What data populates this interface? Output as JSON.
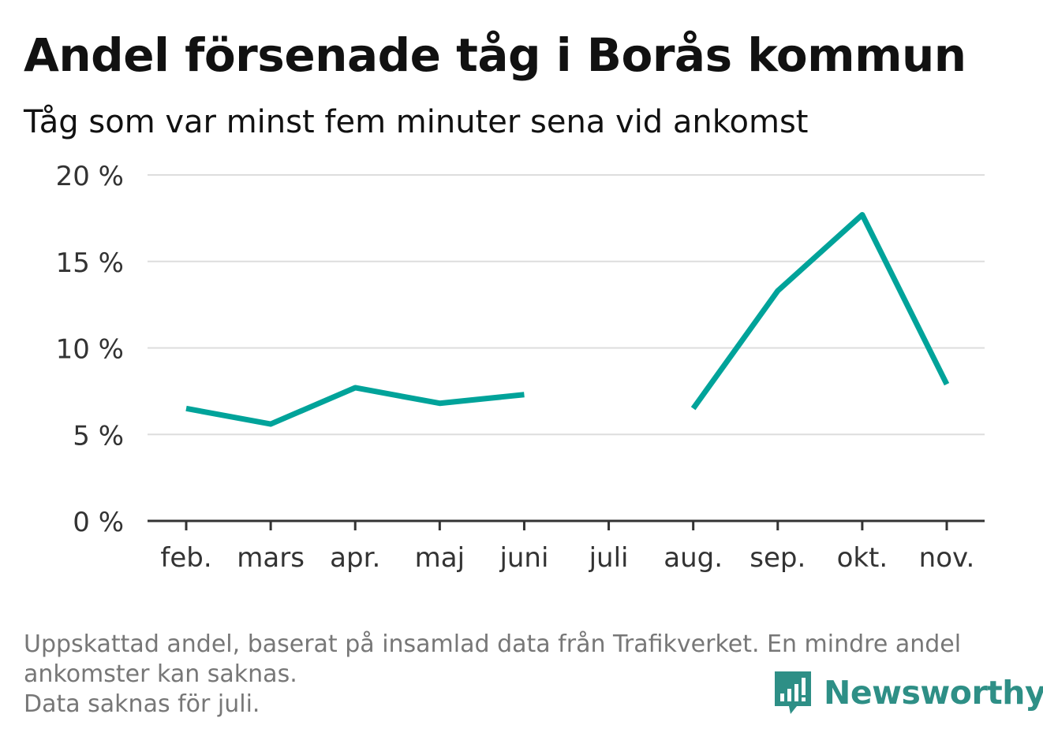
{
  "title": "Andel försenade tåg i Borås kommun",
  "subtitle": "Tåg som var minst fem minuter sena vid ankomst",
  "footnote": {
    "line1": "Uppskattad andel, baserat på insamlad data från Trafikverket. En mindre andel",
    "line2": "ankomster kan saknas.",
    "line3": "Data saknas för juli."
  },
  "brand": {
    "name": "Newsworthy",
    "icon": "newsworthy-logo-icon",
    "color": "#2e8f86"
  },
  "colors": {
    "line": "#00a39a",
    "grid": "#dddddd",
    "axis": "#333333"
  },
  "chart_data": {
    "type": "line",
    "categories": [
      "feb.",
      "mars",
      "apr.",
      "maj",
      "juni",
      "juli",
      "aug.",
      "sep.",
      "okt.",
      "nov."
    ],
    "series": [
      {
        "values": [
          6.5,
          5.6,
          7.7,
          6.8,
          7.3,
          null,
          6.5,
          13.3,
          17.7,
          7.9
        ]
      }
    ],
    "y_ticks": [
      "0 %",
      "5 %",
      "10 %",
      "15 %",
      "20 %"
    ],
    "ylim": [
      0,
      20
    ],
    "y_unit": "%",
    "grid": true,
    "legend": "none"
  }
}
